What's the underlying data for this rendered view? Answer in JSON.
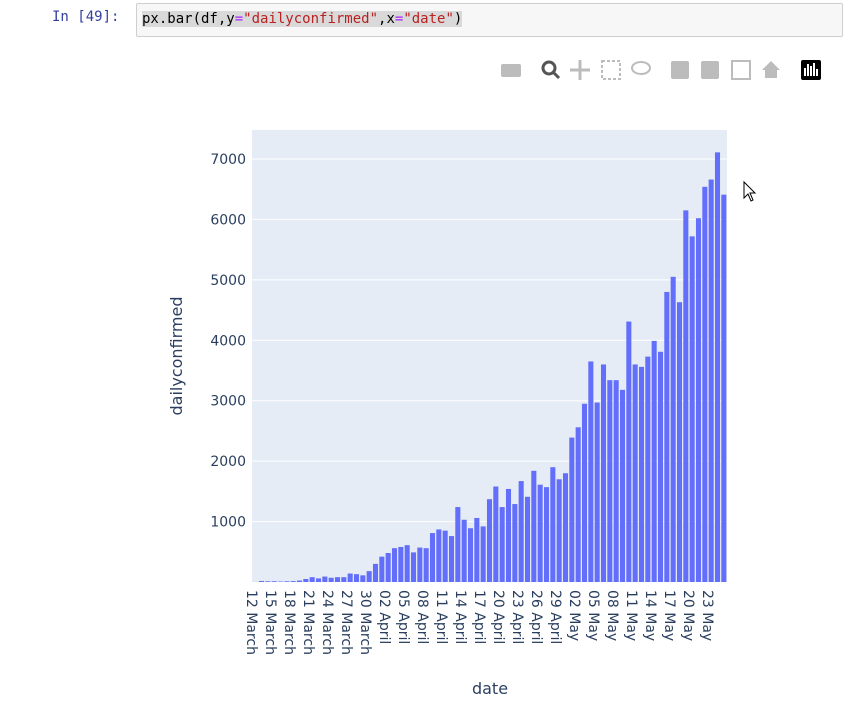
{
  "cell": {
    "prompt": "In [49]:",
    "code": [
      {
        "text": "px.bar(df,y",
        "color": "#000000"
      },
      {
        "text": "=",
        "color": "#aa22ff"
      },
      {
        "text": "\"dailyconfirmed\"",
        "color": "#ba2121"
      },
      {
        "text": ",x",
        "color": "#000000"
      },
      {
        "text": "=",
        "color": "#aa22ff"
      },
      {
        "text": "\"date\"",
        "color": "#ba2121"
      },
      {
        "text": ")",
        "color": "#000000"
      }
    ]
  },
  "chart_data": {
    "type": "bar",
    "x_label": "date",
    "y_label": "dailyconfirmed",
    "color": "#636efa",
    "grid": true,
    "categories": [
      "12 March",
      null,
      null,
      "15 March",
      null,
      null,
      "18 March",
      null,
      null,
      "21 March",
      null,
      null,
      "24 March",
      null,
      null,
      "27 March",
      null,
      null,
      "30 March",
      null,
      null,
      "02 April",
      null,
      null,
      "05 April",
      null,
      null,
      "08 April",
      null,
      null,
      "11 April",
      null,
      null,
      "14 April",
      null,
      null,
      "17 April",
      null,
      null,
      "20 April",
      null,
      null,
      "23 April",
      null,
      null,
      "26 April",
      null,
      null,
      "29 April",
      null,
      null,
      "02 May",
      null,
      null,
      "05 May",
      null,
      null,
      "08 May",
      null,
      null,
      "11 May",
      null,
      null,
      "14 May",
      null,
      null,
      "17 May",
      null,
      null,
      "20 May",
      null,
      null,
      "23 May",
      null,
      null
    ],
    "values": [
      1,
      17,
      12,
      13,
      8,
      12,
      15,
      24,
      50,
      80,
      60,
      90,
      70,
      80,
      80,
      140,
      130,
      110,
      180,
      300,
      420,
      480,
      560,
      580,
      610,
      490,
      570,
      560,
      810,
      870,
      850,
      760,
      1240,
      1030,
      890,
      1060,
      920,
      1370,
      1580,
      1240,
      1540,
      1290,
      1670,
      1410,
      1840,
      1610,
      1570,
      1900,
      1700,
      1800,
      2390,
      2560,
      2950,
      3650,
      2970,
      3600,
      3340,
      3340,
      3180,
      4310,
      3600,
      3560,
      3730,
      3990,
      3810,
      4800,
      5050,
      4630,
      6150,
      5720,
      6020,
      6540,
      6660,
      7110,
      6410
    ],
    "ylim": [
      0,
      7480
    ],
    "yticks": [
      1000,
      2000,
      3000,
      4000,
      5000,
      6000,
      7000
    ]
  }
}
